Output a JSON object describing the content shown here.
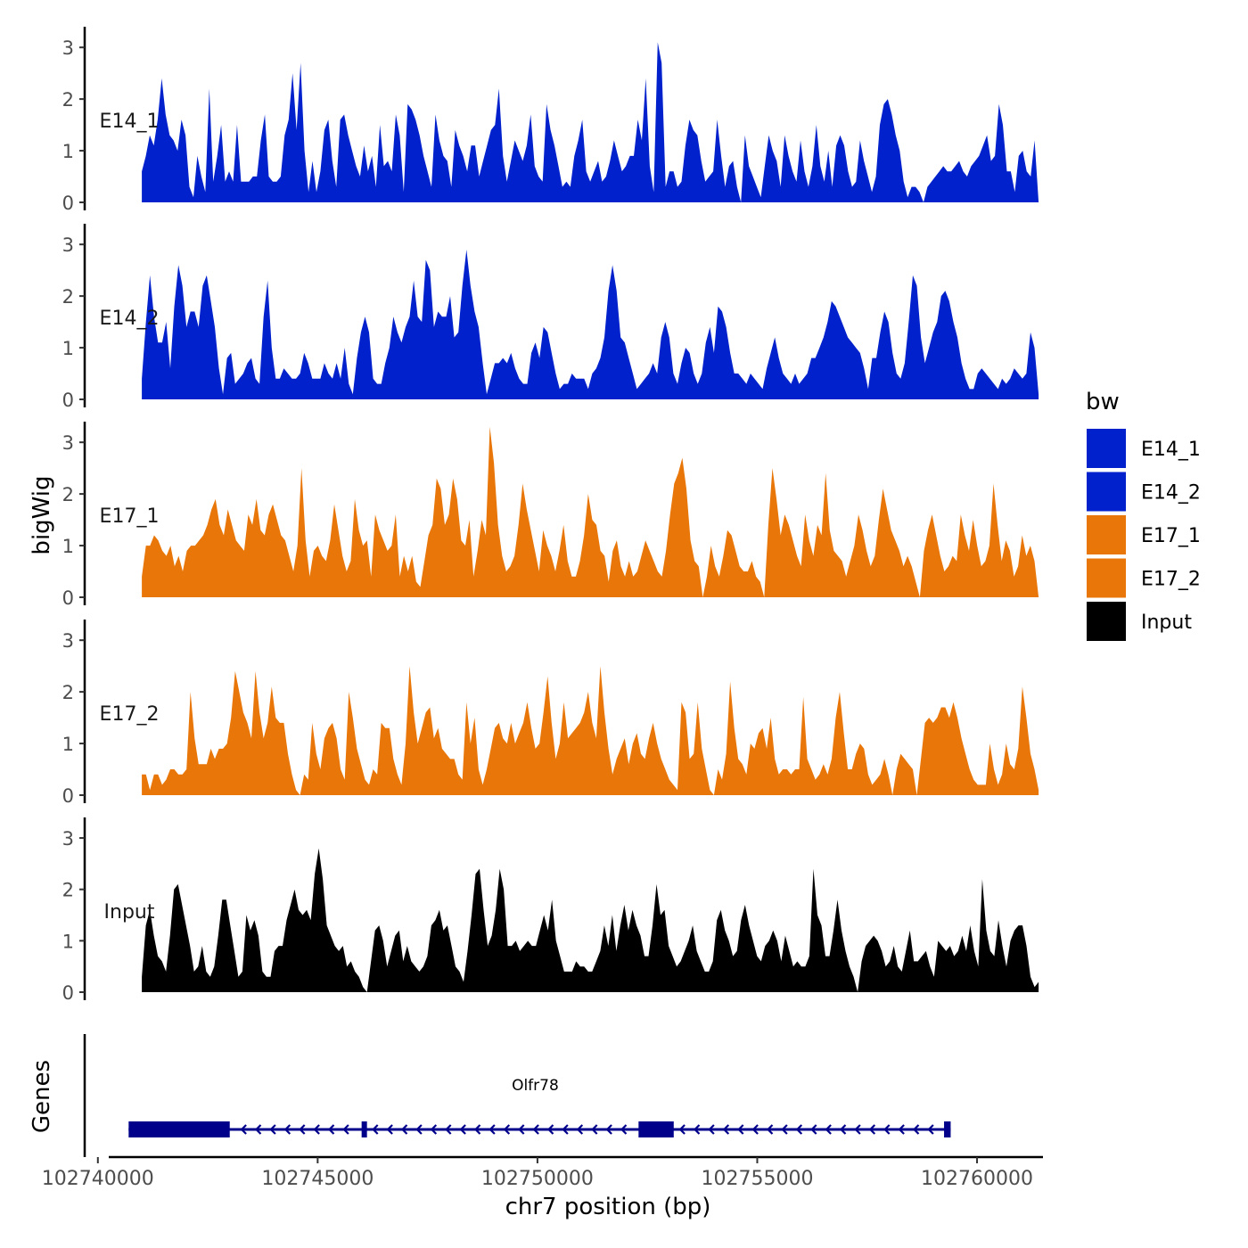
{
  "chart_data": {
    "type": "area",
    "ylabel": "bigWig",
    "xlabel": "chr7 position (bp)",
    "genes_label": "Genes",
    "x_range": [
      102739700,
      102761500
    ],
    "x_ticks": [
      102740000,
      102745000,
      102750000,
      102755000,
      102760000
    ],
    "x_tick_labels": [
      "102740000",
      "102745000",
      "102750000",
      "102755000",
      "102760000"
    ],
    "y_range": [
      0,
      3.4
    ],
    "y_ticks": [
      0,
      1,
      2,
      3
    ],
    "y_tick_labels": [
      "0",
      "1",
      "2",
      "3"
    ],
    "legend": {
      "title": "bw",
      "items": [
        {
          "label": "E14_1",
          "color": "#0021CC"
        },
        {
          "label": "E14_2",
          "color": "#0021CC"
        },
        {
          "label": "E17_1",
          "color": "#E87608"
        },
        {
          "label": "E17_2",
          "color": "#E87608"
        },
        {
          "label": "Input",
          "color": "#000000"
        }
      ]
    },
    "series": [
      {
        "name": "E14_1",
        "color": "#0021CC",
        "x_start": 102741000,
        "x_end": 102761400,
        "values": [
          0.6,
          0.9,
          1.3,
          1.1,
          1.6,
          2.4,
          1.7,
          1.3,
          1.2,
          1.0,
          1.6,
          1.3,
          0.3,
          0.1,
          0.9,
          0.5,
          0.2,
          2.2,
          0.4,
          0.9,
          1.5,
          0.4,
          0.6,
          0.4,
          1.5,
          0.4,
          0.4,
          0.4,
          0.5,
          0.5,
          1.2,
          1.7,
          0.5,
          0.4,
          0.4,
          0.5,
          1.3,
          1.6,
          2.5,
          1.4,
          2.7,
          1.0,
          0.2,
          0.8,
          0.2,
          0.6,
          1.4,
          1.6,
          0.8,
          0.3,
          1.6,
          1.7,
          1.3,
          1.0,
          0.7,
          0.5,
          1.1,
          0.6,
          0.9,
          0.3,
          1.5,
          0.7,
          0.8,
          0.6,
          1.7,
          1.3,
          0.2,
          1.9,
          1.8,
          1.6,
          1.3,
          0.9,
          0.6,
          0.3,
          1.7,
          1.2,
          0.9,
          0.8,
          0.3,
          1.4,
          1.1,
          0.9,
          0.6,
          1.1,
          1.1,
          0.5,
          0.8,
          1.1,
          1.4,
          1.5,
          2.2,
          0.9,
          0.4,
          0.8,
          1.2,
          1.0,
          0.8,
          1.1,
          1.7,
          0.7,
          0.5,
          0.4,
          1.9,
          1.4,
          1.1,
          0.7,
          0.3,
          0.4,
          0.3,
          0.9,
          1.2,
          1.6,
          0.6,
          0.4,
          0.6,
          0.8,
          0.4,
          0.5,
          0.8,
          1.2,
          0.9,
          0.6,
          0.7,
          0.9,
          0.9,
          1.6,
          1.2,
          2.4,
          0.7,
          0.2,
          3.1,
          2.7,
          0.3,
          0.6,
          0.6,
          0.3,
          0.4,
          1.1,
          1.6,
          1.4,
          1.3,
          0.8,
          0.4,
          0.5,
          0.6,
          1.6,
          0.9,
          0.3,
          0.7,
          0.8,
          0.3,
          0.0,
          1.3,
          0.7,
          0.5,
          0.3,
          0.1,
          0.7,
          1.3,
          1.0,
          0.8,
          0.3,
          1.3,
          0.9,
          0.6,
          0.4,
          1.2,
          0.6,
          0.3,
          0.7,
          1.5,
          0.7,
          0.4,
          1.0,
          0.3,
          1.1,
          1.3,
          1.1,
          0.6,
          0.3,
          0.4,
          1.2,
          0.8,
          0.5,
          0.2,
          0.5,
          1.5,
          1.9,
          2.0,
          1.7,
          1.3,
          1.0,
          0.4,
          0.1,
          0.3,
          0.3,
          0.2,
          0.0,
          0.3,
          0.4,
          0.5,
          0.6,
          0.7,
          0.6,
          0.6,
          0.7,
          0.8,
          0.6,
          0.5,
          0.7,
          0.8,
          0.9,
          1.1,
          1.3,
          0.8,
          0.9,
          1.9,
          1.5,
          0.6,
          0.6,
          0.2,
          0.9,
          1.0,
          0.6,
          0.5,
          1.2,
          0.0
        ]
      },
      {
        "name": "E14_2",
        "color": "#0021CC",
        "x_start": 102741000,
        "x_end": 102761400,
        "values": [
          0.4,
          1.5,
          2.4,
          1.6,
          1.1,
          1.1,
          1.5,
          0.6,
          1.8,
          2.6,
          2.2,
          1.4,
          1.7,
          1.7,
          1.4,
          2.2,
          2.4,
          1.9,
          1.4,
          0.6,
          0.1,
          0.8,
          0.9,
          0.3,
          0.4,
          0.5,
          0.7,
          0.8,
          0.4,
          0.3,
          1.6,
          2.3,
          1.0,
          0.4,
          0.4,
          0.6,
          0.5,
          0.4,
          0.4,
          0.5,
          0.9,
          0.7,
          0.4,
          0.4,
          0.4,
          0.7,
          0.5,
          0.4,
          0.7,
          0.4,
          1.0,
          0.3,
          0.1,
          0.8,
          1.3,
          1.6,
          1.3,
          0.4,
          0.3,
          0.3,
          0.7,
          1.0,
          1.6,
          1.3,
          1.1,
          1.4,
          1.6,
          2.3,
          1.6,
          1.5,
          2.7,
          2.5,
          1.4,
          1.7,
          1.6,
          1.6,
          2.0,
          1.2,
          1.3,
          2.2,
          2.9,
          2.2,
          1.7,
          1.4,
          0.7,
          0.1,
          0.4,
          0.7,
          0.7,
          0.8,
          0.7,
          0.9,
          0.6,
          0.4,
          0.3,
          0.3,
          0.9,
          1.1,
          0.8,
          1.4,
          1.3,
          0.9,
          0.5,
          0.2,
          0.3,
          0.3,
          0.5,
          0.4,
          0.4,
          0.4,
          0.2,
          0.5,
          0.6,
          0.8,
          1.2,
          2.1,
          2.6,
          2.1,
          1.2,
          1.1,
          0.8,
          0.5,
          0.2,
          0.3,
          0.4,
          0.5,
          0.7,
          0.5,
          1.2,
          1.5,
          1.2,
          0.5,
          0.3,
          0.7,
          1.0,
          0.9,
          0.5,
          0.3,
          0.5,
          1.1,
          1.4,
          0.9,
          1.8,
          1.7,
          1.4,
          0.9,
          0.5,
          0.5,
          0.4,
          0.3,
          0.5,
          0.4,
          0.3,
          0.2,
          0.6,
          0.9,
          1.2,
          0.8,
          0.5,
          0.4,
          0.3,
          0.5,
          0.3,
          0.4,
          0.5,
          0.8,
          0.8,
          1.0,
          1.2,
          1.5,
          1.9,
          1.8,
          1.6,
          1.4,
          1.2,
          1.1,
          1.0,
          0.9,
          0.6,
          0.2,
          0.8,
          0.8,
          1.3,
          1.7,
          1.5,
          0.9,
          0.5,
          0.4,
          0.7,
          1.5,
          2.4,
          2.2,
          1.2,
          0.7,
          1.0,
          1.3,
          1.5,
          2.0,
          2.1,
          1.9,
          1.5,
          1.2,
          0.7,
          0.4,
          0.2,
          0.2,
          0.5,
          0.6,
          0.5,
          0.4,
          0.3,
          0.2,
          0.4,
          0.3,
          0.4,
          0.6,
          0.5,
          0.4,
          0.5,
          1.3,
          1.0,
          0.1
        ]
      },
      {
        "name": "E17_1",
        "color": "#E87608",
        "x_start": 102741000,
        "x_end": 102761400,
        "values": [
          0.4,
          1.0,
          1.0,
          1.2,
          1.1,
          0.9,
          0.8,
          1.0,
          0.6,
          0.8,
          0.5,
          0.9,
          1.0,
          1.0,
          1.1,
          1.2,
          1.4,
          1.7,
          1.9,
          1.4,
          1.2,
          1.7,
          1.4,
          1.1,
          1.0,
          0.9,
          1.6,
          1.4,
          1.9,
          1.3,
          1.2,
          1.6,
          1.8,
          1.5,
          1.2,
          1.1,
          0.8,
          0.5,
          1.0,
          2.5,
          1.1,
          0.4,
          0.9,
          1.0,
          0.8,
          0.7,
          1.1,
          1.8,
          1.3,
          0.8,
          0.5,
          0.7,
          1.9,
          1.3,
          1.0,
          1.1,
          0.4,
          1.6,
          1.3,
          1.1,
          0.9,
          1.0,
          1.6,
          0.4,
          0.8,
          0.5,
          0.8,
          0.3,
          0.2,
          0.7,
          1.2,
          1.4,
          2.3,
          2.1,
          1.4,
          1.6,
          2.3,
          1.9,
          1.1,
          1.0,
          1.5,
          0.4,
          0.9,
          1.5,
          1.2,
          3.3,
          2.6,
          1.4,
          0.8,
          0.5,
          0.6,
          0.8,
          1.4,
          2.2,
          1.7,
          1.3,
          0.9,
          0.5,
          1.3,
          1.0,
          0.8,
          0.5,
          0.9,
          1.4,
          0.7,
          0.4,
          0.4,
          0.7,
          1.2,
          2.0,
          1.5,
          1.4,
          0.9,
          0.8,
          0.3,
          0.9,
          1.1,
          0.6,
          0.4,
          0.7,
          0.4,
          0.5,
          0.8,
          1.1,
          0.9,
          0.7,
          0.5,
          0.4,
          0.9,
          1.6,
          2.2,
          2.4,
          2.7,
          2.1,
          1.1,
          0.7,
          0.6,
          0.0,
          0.4,
          1.0,
          0.6,
          0.4,
          0.8,
          1.3,
          1.2,
          0.9,
          0.6,
          0.5,
          0.5,
          0.7,
          0.4,
          0.3,
          0.0,
          1.4,
          2.5,
          1.9,
          1.2,
          1.6,
          1.4,
          1.1,
          0.8,
          0.6,
          1.6,
          1.1,
          0.8,
          1.4,
          1.2,
          2.4,
          1.3,
          0.9,
          0.8,
          0.7,
          0.4,
          0.7,
          1.0,
          1.6,
          1.3,
          0.9,
          0.6,
          0.8,
          1.5,
          2.1,
          1.7,
          1.3,
          1.1,
          0.9,
          0.6,
          0.8,
          0.6,
          0.3,
          0.0,
          0.9,
          1.3,
          1.6,
          1.2,
          0.8,
          0.5,
          0.6,
          0.8,
          0.7,
          1.6,
          1.2,
          0.9,
          1.5,
          1.0,
          0.6,
          0.7,
          1.0,
          2.2,
          1.4,
          0.7,
          1.1,
          0.9,
          0.4,
          0.6,
          1.2,
          0.8,
          1.0,
          0.7,
          0.0
        ]
      },
      {
        "name": "E17_2",
        "color": "#E87608",
        "x_start": 102741000,
        "x_end": 102761400,
        "values": [
          0.4,
          0.4,
          0.1,
          0.4,
          0.4,
          0.2,
          0.3,
          0.5,
          0.5,
          0.4,
          0.4,
          0.5,
          2.0,
          1.1,
          0.6,
          0.6,
          0.6,
          0.9,
          0.7,
          0.9,
          0.9,
          1.0,
          1.5,
          2.4,
          2.0,
          1.6,
          1.4,
          1.1,
          2.4,
          1.6,
          1.1,
          1.4,
          2.1,
          1.5,
          1.4,
          1.4,
          0.8,
          0.4,
          0.1,
          0.0,
          0.4,
          0.3,
          1.4,
          0.8,
          0.5,
          1.1,
          1.3,
          1.4,
          1.1,
          0.5,
          0.3,
          2.0,
          1.5,
          0.9,
          0.6,
          0.3,
          0.2,
          0.5,
          0.4,
          1.4,
          1.3,
          1.3,
          0.7,
          0.4,
          0.2,
          1.0,
          2.5,
          1.6,
          1.0,
          1.3,
          1.6,
          1.7,
          1.1,
          1.3,
          0.9,
          0.8,
          0.7,
          0.7,
          0.4,
          0.3,
          1.8,
          1.0,
          1.5,
          0.5,
          0.2,
          0.5,
          0.9,
          1.3,
          1.4,
          1.1,
          1.0,
          1.4,
          1.0,
          1.2,
          1.4,
          1.8,
          1.3,
          0.9,
          1.0,
          1.6,
          2.3,
          1.4,
          0.7,
          1.0,
          1.8,
          1.1,
          1.2,
          1.3,
          1.4,
          1.6,
          2.0,
          1.4,
          1.1,
          2.5,
          1.6,
          0.9,
          0.4,
          0.7,
          0.9,
          1.1,
          0.6,
          1.0,
          1.2,
          0.8,
          0.7,
          1.1,
          1.4,
          1.0,
          0.7,
          0.5,
          0.3,
          0.2,
          0.1,
          1.8,
          1.6,
          0.7,
          0.8,
          1.8,
          0.9,
          0.5,
          0.1,
          0.0,
          0.5,
          0.3,
          0.8,
          2.2,
          1.3,
          0.7,
          0.6,
          0.4,
          1.0,
          0.9,
          1.2,
          1.3,
          0.9,
          1.5,
          0.7,
          0.4,
          0.5,
          0.5,
          0.4,
          0.5,
          0.5,
          1.9,
          0.7,
          0.5,
          0.3,
          0.4,
          0.6,
          0.4,
          0.7,
          1.5,
          2.0,
          1.2,
          0.5,
          0.5,
          0.8,
          1.0,
          0.9,
          0.4,
          0.2,
          0.3,
          0.4,
          0.7,
          0.4,
          0.0,
          0.5,
          0.8,
          0.7,
          0.6,
          0.5,
          0.0,
          0.7,
          1.4,
          1.5,
          1.4,
          1.5,
          1.7,
          1.7,
          1.5,
          1.8,
          1.5,
          1.1,
          0.8,
          0.5,
          0.3,
          0.2,
          0.2,
          0.2,
          1.0,
          0.5,
          0.2,
          0.4,
          1.0,
          0.6,
          0.5,
          0.9,
          2.1,
          1.5,
          0.8,
          0.5,
          0.1
        ]
      },
      {
        "name": "Input",
        "color": "#000000",
        "x_start": 102741000,
        "x_end": 102761400,
        "values": [
          0.3,
          1.3,
          1.6,
          1.1,
          0.7,
          0.6,
          0.4,
          1.1,
          2.0,
          2.1,
          1.7,
          1.3,
          0.9,
          0.4,
          0.5,
          0.9,
          0.4,
          0.3,
          0.5,
          1.1,
          1.8,
          1.8,
          1.3,
          0.8,
          0.3,
          0.4,
          1.5,
          1.2,
          1.4,
          1.1,
          0.4,
          0.3,
          0.3,
          0.8,
          0.9,
          0.9,
          1.4,
          1.7,
          2.0,
          1.6,
          1.5,
          1.6,
          1.4,
          2.3,
          2.8,
          2.2,
          1.3,
          1.1,
          0.9,
          0.8,
          0.9,
          0.5,
          0.6,
          0.4,
          0.3,
          0.1,
          0.0,
          0.6,
          1.2,
          1.3,
          1.0,
          0.5,
          0.8,
          1.1,
          1.2,
          0.6,
          0.9,
          0.6,
          0.5,
          0.4,
          0.5,
          0.7,
          1.3,
          1.4,
          1.6,
          1.2,
          1.3,
          0.9,
          0.5,
          0.4,
          0.2,
          0.8,
          1.5,
          2.3,
          2.4,
          1.6,
          0.9,
          1.1,
          1.6,
          2.4,
          2.0,
          0.9,
          0.9,
          1.0,
          0.8,
          0.9,
          1.0,
          0.9,
          0.9,
          1.2,
          1.5,
          1.2,
          1.8,
          1.0,
          0.7,
          0.4,
          0.4,
          0.4,
          0.6,
          0.5,
          0.5,
          0.4,
          0.4,
          0.6,
          0.8,
          1.3,
          0.9,
          1.5,
          0.8,
          1.3,
          1.7,
          1.2,
          1.6,
          1.3,
          1.1,
          0.7,
          0.7,
          1.3,
          2.1,
          1.5,
          1.6,
          0.9,
          0.7,
          0.5,
          0.6,
          0.8,
          1.0,
          1.3,
          0.8,
          0.6,
          0.4,
          0.4,
          0.6,
          1.4,
          1.6,
          1.2,
          1.0,
          0.7,
          0.8,
          1.4,
          1.7,
          1.3,
          1.0,
          0.7,
          0.6,
          0.9,
          1.0,
          1.2,
          1.0,
          0.6,
          1.1,
          0.8,
          0.5,
          0.6,
          0.5,
          0.5,
          0.7,
          2.4,
          1.5,
          1.3,
          0.7,
          0.7,
          1.2,
          1.8,
          1.2,
          0.8,
          0.5,
          0.3,
          0.0,
          0.6,
          0.9,
          1.0,
          1.1,
          1.0,
          0.8,
          0.5,
          0.6,
          0.9,
          0.5,
          0.4,
          0.8,
          1.2,
          0.6,
          0.6,
          0.7,
          0.8,
          0.5,
          0.3,
          1.0,
          0.9,
          0.8,
          0.9,
          0.7,
          0.8,
          1.1,
          0.8,
          1.3,
          0.8,
          0.5,
          2.2,
          1.2,
          0.8,
          0.7,
          1.4,
          0.9,
          0.5,
          1.0,
          1.2,
          1.3,
          1.3,
          0.9,
          0.3,
          0.1,
          0.2
        ]
      }
    ],
    "gene": {
      "name": "Olfr78",
      "color": "#00008B",
      "strand": "-",
      "start": 102740700,
      "end": 102759400,
      "exons": [
        [
          102740700,
          102743000
        ],
        [
          102746000,
          102746100
        ],
        [
          102752300,
          102753100
        ],
        [
          102759250,
          102759400
        ]
      ]
    }
  }
}
